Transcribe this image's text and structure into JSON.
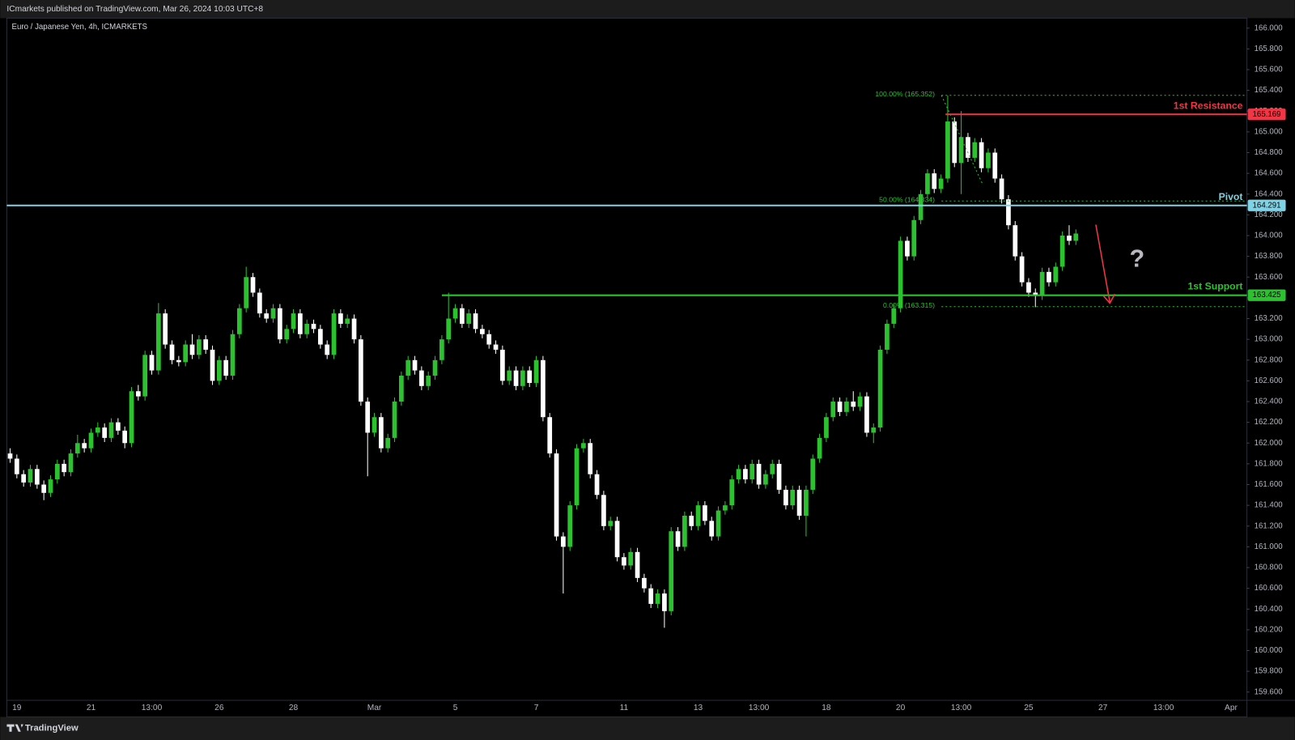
{
  "chart_data": {
    "type": "candlestick",
    "publisher": "ICmarkets published on TradingView.com, Mar 26, 2024 10:03 UTC+8",
    "title": "Euro / Japanese Yen, 4h, ICMARKETS",
    "brand": "TradingView",
    "question": "?",
    "up_color": "#2cc12f",
    "down_color": "#ffffff",
    "grid": false,
    "categories": [
      null,
      "19",
      null,
      null,
      null,
      null,
      null,
      null,
      null,
      null,
      null,
      null,
      "21",
      null,
      null,
      null,
      null,
      null,
      null,
      null,
      null,
      "13:00",
      null,
      null,
      null,
      null,
      null,
      null,
      null,
      null,
      null,
      "26",
      null,
      null,
      null,
      null,
      null,
      null,
      null,
      null,
      null,
      null,
      "28",
      null,
      null,
      null,
      null,
      null,
      null,
      null,
      null,
      null,
      null,
      null,
      "Mar",
      null,
      null,
      null,
      null,
      null,
      null,
      null,
      null,
      null,
      null,
      null,
      "5",
      null,
      null,
      null,
      null,
      null,
      null,
      null,
      null,
      null,
      null,
      null,
      "7",
      null,
      null,
      null,
      null,
      null,
      null,
      null,
      null,
      null,
      null,
      null,
      null,
      "11",
      null,
      null,
      null,
      null,
      null,
      null,
      null,
      null,
      null,
      null,
      "13",
      null,
      null,
      null,
      null,
      null,
      null,
      null,
      null,
      "13:00",
      null,
      null,
      null,
      null,
      null,
      null,
      null,
      null,
      null,
      "18",
      null,
      null,
      null,
      null,
      null,
      null,
      null,
      null,
      null,
      null,
      "20",
      null,
      null,
      null,
      null,
      null,
      null,
      null,
      null,
      "13:00",
      null,
      null,
      null,
      null,
      null,
      null,
      null,
      null,
      null,
      "25",
      null,
      null,
      null,
      null,
      null,
      null,
      null,
      null,
      null,
      null,
      "27",
      null,
      null,
      null,
      null,
      null,
      null,
      null,
      null,
      "13:00",
      null,
      null,
      null,
      null,
      null,
      null,
      null,
      null,
      null,
      "Apr",
      null,
      null
    ],
    "ohlc": [
      [
        161.9,
        161.95,
        161.81,
        161.85
      ],
      [
        161.85,
        161.89,
        161.66,
        161.7
      ],
      [
        161.7,
        161.74,
        161.58,
        161.62
      ],
      [
        161.62,
        161.79,
        161.58,
        161.75
      ],
      [
        161.75,
        161.79,
        161.56,
        161.6
      ],
      [
        161.6,
        161.64,
        161.45,
        161.52
      ],
      [
        161.52,
        161.69,
        161.48,
        161.65
      ],
      [
        161.65,
        161.84,
        161.61,
        161.8
      ],
      [
        161.8,
        161.84,
        161.68,
        161.72
      ],
      [
        161.72,
        161.94,
        161.68,
        161.9
      ],
      [
        161.9,
        162.08,
        161.86,
        162.0
      ],
      [
        162.0,
        162.04,
        161.91,
        161.95
      ],
      [
        161.95,
        162.14,
        161.91,
        162.1
      ],
      [
        162.1,
        162.2,
        162.06,
        162.15
      ],
      [
        162.15,
        162.19,
        162.01,
        162.05
      ],
      [
        162.05,
        162.24,
        162.01,
        162.2
      ],
      [
        162.2,
        162.24,
        162.08,
        162.12
      ],
      [
        162.12,
        162.16,
        161.95,
        162.0
      ],
      [
        162.0,
        162.54,
        161.96,
        162.5
      ],
      [
        162.5,
        162.56,
        162.41,
        162.45
      ],
      [
        162.45,
        162.89,
        162.41,
        162.85
      ],
      [
        162.85,
        162.89,
        162.66,
        162.7
      ],
      [
        162.7,
        163.35,
        162.66,
        163.25
      ],
      [
        163.25,
        163.29,
        162.91,
        162.95
      ],
      [
        162.95,
        162.99,
        162.76,
        162.8
      ],
      [
        162.8,
        162.84,
        162.74,
        162.78
      ],
      [
        162.78,
        162.99,
        162.74,
        162.95
      ],
      [
        162.95,
        163.05,
        162.81,
        162.85
      ],
      [
        162.85,
        163.04,
        162.81,
        163.0
      ],
      [
        163.0,
        163.04,
        162.86,
        162.9
      ],
      [
        162.9,
        162.94,
        162.56,
        162.6
      ],
      [
        162.6,
        162.84,
        162.56,
        162.8
      ],
      [
        162.8,
        162.84,
        162.61,
        162.65
      ],
      [
        162.65,
        163.09,
        162.61,
        163.05
      ],
      [
        163.05,
        163.34,
        163.01,
        163.3
      ],
      [
        163.3,
        163.7,
        163.26,
        163.6
      ],
      [
        163.6,
        163.64,
        163.41,
        163.45
      ],
      [
        163.45,
        163.49,
        163.21,
        163.25
      ],
      [
        163.25,
        163.29,
        163.16,
        163.2
      ],
      [
        163.2,
        163.34,
        163.16,
        163.3
      ],
      [
        163.3,
        163.34,
        162.96,
        163.0
      ],
      [
        163.0,
        163.14,
        162.96,
        163.1
      ],
      [
        163.1,
        163.29,
        163.06,
        163.25
      ],
      [
        163.25,
        163.29,
        163.01,
        163.05
      ],
      [
        163.05,
        163.19,
        163.01,
        163.15
      ],
      [
        163.15,
        163.19,
        163.06,
        163.1
      ],
      [
        163.1,
        163.14,
        162.91,
        162.95
      ],
      [
        162.95,
        162.99,
        162.81,
        162.85
      ],
      [
        162.85,
        163.29,
        162.81,
        163.25
      ],
      [
        163.25,
        163.29,
        163.11,
        163.15
      ],
      [
        163.15,
        163.24,
        163.11,
        163.2
      ],
      [
        163.2,
        163.24,
        162.96,
        163.0
      ],
      [
        163.0,
        163.04,
        162.36,
        162.4
      ],
      [
        162.4,
        162.44,
        161.68,
        162.1
      ],
      [
        162.1,
        162.29,
        162.06,
        162.25
      ],
      [
        162.25,
        162.29,
        161.91,
        161.95
      ],
      [
        161.95,
        162.09,
        161.91,
        162.05
      ],
      [
        162.05,
        162.44,
        162.01,
        162.4
      ],
      [
        162.4,
        162.69,
        162.36,
        162.65
      ],
      [
        162.65,
        162.84,
        162.61,
        162.8
      ],
      [
        162.8,
        162.84,
        162.66,
        162.7
      ],
      [
        162.7,
        162.74,
        162.51,
        162.55
      ],
      [
        162.55,
        162.69,
        162.51,
        162.65
      ],
      [
        162.65,
        162.84,
        162.61,
        162.8
      ],
      [
        162.8,
        163.04,
        162.76,
        163.0
      ],
      [
        163.0,
        163.45,
        162.96,
        163.2
      ],
      [
        163.2,
        163.34,
        163.16,
        163.3
      ],
      [
        163.3,
        163.34,
        163.11,
        163.15
      ],
      [
        163.15,
        163.29,
        163.11,
        163.25
      ],
      [
        163.25,
        163.29,
        163.06,
        163.1
      ],
      [
        163.1,
        163.14,
        163.01,
        163.05
      ],
      [
        163.05,
        163.09,
        162.91,
        162.95
      ],
      [
        162.95,
        162.99,
        162.86,
        162.9
      ],
      [
        162.9,
        162.94,
        162.56,
        162.6
      ],
      [
        162.6,
        162.74,
        162.56,
        162.7
      ],
      [
        162.7,
        162.74,
        162.51,
        162.55
      ],
      [
        162.55,
        162.74,
        162.51,
        162.7
      ],
      [
        162.7,
        162.74,
        162.54,
        162.58
      ],
      [
        162.58,
        162.84,
        162.54,
        162.8
      ],
      [
        162.8,
        162.84,
        162.21,
        162.25
      ],
      [
        162.25,
        162.29,
        161.86,
        161.9
      ],
      [
        161.9,
        161.94,
        161.06,
        161.1
      ],
      [
        161.1,
        161.14,
        160.55,
        161.0
      ],
      [
        161.0,
        161.44,
        160.96,
        161.4
      ],
      [
        161.4,
        161.99,
        161.36,
        161.95
      ],
      [
        161.95,
        162.04,
        161.91,
        162.0
      ],
      [
        162.0,
        162.04,
        161.66,
        161.7
      ],
      [
        161.7,
        161.74,
        161.46,
        161.5
      ],
      [
        161.5,
        161.54,
        161.16,
        161.2
      ],
      [
        161.2,
        161.29,
        161.16,
        161.25
      ],
      [
        161.25,
        161.29,
        160.86,
        160.9
      ],
      [
        160.9,
        160.94,
        160.78,
        160.82
      ],
      [
        160.82,
        160.99,
        160.78,
        160.95
      ],
      [
        160.95,
        160.99,
        160.66,
        160.7
      ],
      [
        160.7,
        160.74,
        160.56,
        160.6
      ],
      [
        160.6,
        160.64,
        160.41,
        160.45
      ],
      [
        160.45,
        160.59,
        160.41,
        160.55
      ],
      [
        160.55,
        160.59,
        160.22,
        160.38
      ],
      [
        160.38,
        161.19,
        160.34,
        161.15
      ],
      [
        161.15,
        161.19,
        160.96,
        161.0
      ],
      [
        161.0,
        161.34,
        160.96,
        161.3
      ],
      [
        161.3,
        161.34,
        161.16,
        161.2
      ],
      [
        161.2,
        161.44,
        161.16,
        161.4
      ],
      [
        161.4,
        161.44,
        161.21,
        161.25
      ],
      [
        161.25,
        161.29,
        161.06,
        161.1
      ],
      [
        161.1,
        161.39,
        161.06,
        161.35
      ],
      [
        161.35,
        161.44,
        161.31,
        161.4
      ],
      [
        161.4,
        161.69,
        161.36,
        161.65
      ],
      [
        161.65,
        161.79,
        161.61,
        161.75
      ],
      [
        161.75,
        161.79,
        161.61,
        161.65
      ],
      [
        161.65,
        161.84,
        161.61,
        161.8
      ],
      [
        161.8,
        161.84,
        161.56,
        161.6
      ],
      [
        161.6,
        161.74,
        161.56,
        161.7
      ],
      [
        161.7,
        161.84,
        161.66,
        161.8
      ],
      [
        161.8,
        161.84,
        161.51,
        161.55
      ],
      [
        161.55,
        161.59,
        161.36,
        161.4
      ],
      [
        161.4,
        161.59,
        161.36,
        161.55
      ],
      [
        161.55,
        161.59,
        161.26,
        161.3
      ],
      [
        161.3,
        161.59,
        161.1,
        161.55
      ],
      [
        161.55,
        161.89,
        161.51,
        161.85
      ],
      [
        161.85,
        162.09,
        161.81,
        162.05
      ],
      [
        162.05,
        162.29,
        162.01,
        162.25
      ],
      [
        162.25,
        162.44,
        162.21,
        162.4
      ],
      [
        162.4,
        162.44,
        162.26,
        162.3
      ],
      [
        162.3,
        162.44,
        162.26,
        162.4
      ],
      [
        162.4,
        162.5,
        162.31,
        162.35
      ],
      [
        162.35,
        162.49,
        162.31,
        162.45
      ],
      [
        162.45,
        162.49,
        162.06,
        162.1
      ],
      [
        162.1,
        162.19,
        162.0,
        162.15
      ],
      [
        162.15,
        162.94,
        162.11,
        162.9
      ],
      [
        162.9,
        163.19,
        162.86,
        163.15
      ],
      [
        163.15,
        163.34,
        163.11,
        163.3
      ],
      [
        163.3,
        163.99,
        163.26,
        163.95
      ],
      [
        163.95,
        163.99,
        163.76,
        163.8
      ],
      [
        163.8,
        164.19,
        163.76,
        164.15
      ],
      [
        164.15,
        164.44,
        164.11,
        164.4
      ],
      [
        164.4,
        164.64,
        164.36,
        164.6
      ],
      [
        164.6,
        164.64,
        164.41,
        164.45
      ],
      [
        164.45,
        164.59,
        164.41,
        164.55
      ],
      [
        164.55,
        165.35,
        164.51,
        165.1
      ],
      [
        165.1,
        165.14,
        164.66,
        164.7
      ],
      [
        164.7,
        165.2,
        164.4,
        164.95
      ],
      [
        164.95,
        164.99,
        164.71,
        164.75
      ],
      [
        164.75,
        164.94,
        164.71,
        164.9
      ],
      [
        164.9,
        164.94,
        164.61,
        164.65
      ],
      [
        164.65,
        164.84,
        164.61,
        164.8
      ],
      [
        164.8,
        164.84,
        164.51,
        164.55
      ],
      [
        164.55,
        164.59,
        164.31,
        164.35
      ],
      [
        164.35,
        164.39,
        164.06,
        164.1
      ],
      [
        164.1,
        164.14,
        163.76,
        163.8
      ],
      [
        163.8,
        163.84,
        163.51,
        163.55
      ],
      [
        163.55,
        163.59,
        163.41,
        163.45
      ],
      [
        163.45,
        163.49,
        163.31,
        163.42
      ],
      [
        163.42,
        163.69,
        163.38,
        163.65
      ],
      [
        163.65,
        163.69,
        163.51,
        163.55
      ],
      [
        163.55,
        163.74,
        163.51,
        163.7
      ],
      [
        163.7,
        164.04,
        163.66,
        164.0
      ],
      [
        164.0,
        164.1,
        163.91,
        163.95
      ],
      [
        163.95,
        164.06,
        163.91,
        164.02
      ],
      null,
      null,
      null,
      null,
      null,
      null,
      null,
      null,
      null,
      null,
      null,
      null,
      null,
      null,
      null,
      null,
      null,
      null,
      null,
      null,
      null,
      null,
      null,
      null,
      null
    ],
    "ylim": [
      159.52,
      166.096
    ],
    "yticks": [
      {
        "value": 159.6,
        "label": "159.600"
      },
      {
        "value": 159.8,
        "label": "159.800"
      },
      {
        "value": 160.0,
        "label": "160.000"
      },
      {
        "value": 160.2,
        "label": "160.200"
      },
      {
        "value": 160.4,
        "label": "160.400"
      },
      {
        "value": 160.6,
        "label": "160.600"
      },
      {
        "value": 160.8,
        "label": "160.800"
      },
      {
        "value": 161.0,
        "label": "161.000"
      },
      {
        "value": 161.2,
        "label": "161.200"
      },
      {
        "value": 161.4,
        "label": "161.400"
      },
      {
        "value": 161.6,
        "label": "161.600"
      },
      {
        "value": 161.8,
        "label": "161.800"
      },
      {
        "value": 162.0,
        "label": "162.000"
      },
      {
        "value": 162.2,
        "label": "162.200"
      },
      {
        "value": 162.4,
        "label": "162.400"
      },
      {
        "value": 162.6,
        "label": "162.600"
      },
      {
        "value": 162.8,
        "label": "162.800"
      },
      {
        "value": 163.0,
        "label": "163.000"
      },
      {
        "value": 163.2,
        "label": "163.200"
      },
      {
        "value": 163.4,
        "label": "163.400"
      },
      {
        "value": 163.6,
        "label": "163.600"
      },
      {
        "value": 163.8,
        "label": "163.800"
      },
      {
        "value": 164.0,
        "label": "164.000"
      },
      {
        "value": 164.2,
        "label": "164.200"
      },
      {
        "value": 164.4,
        "label": "164.400"
      },
      {
        "value": 164.6,
        "label": "164.600"
      },
      {
        "value": 164.8,
        "label": "164.800"
      },
      {
        "value": 165.0,
        "label": "165.000"
      },
      {
        "value": 165.2,
        "label": "165.200"
      },
      {
        "value": 165.4,
        "label": "165.400"
      },
      {
        "value": 165.6,
        "label": "165.600"
      },
      {
        "value": 165.8,
        "label": "165.800"
      },
      {
        "value": 166.0,
        "label": "166.000"
      }
    ],
    "levels": [
      {
        "name": "1st Resistance",
        "value": 165.169,
        "color": "#f23645"
      },
      {
        "name": "Pivot",
        "value": 164.291,
        "color": "#7fd3e6"
      },
      {
        "name": "1st Support",
        "value": 163.425,
        "color": "#2cc12f"
      }
    ],
    "fib": [
      {
        "value": 165.352,
        "label": "100.00% (165.352)"
      },
      {
        "value": 164.334,
        "label": "50.00% (164.334)"
      },
      {
        "value": 163.315,
        "label": "0.00% (163.315)"
      }
    ],
    "fib_color": "#2cc12f"
  }
}
